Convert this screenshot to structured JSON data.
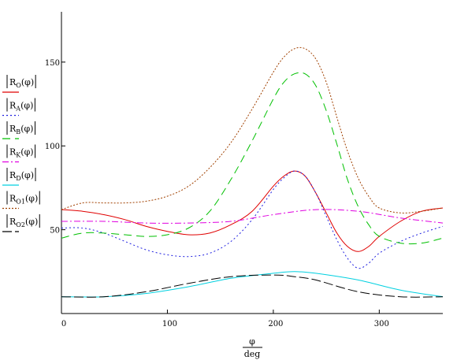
{
  "chart_data": {
    "type": "line",
    "xlabel_num": "φ",
    "xlabel_den": "deg",
    "xlim": [
      0,
      360
    ],
    "ylim": [
      0,
      180
    ],
    "x_ticks": [
      0,
      100,
      200,
      300
    ],
    "y_ticks": [
      50,
      100,
      150
    ],
    "grid": false,
    "legend_placement": "left",
    "series": [
      {
        "name": "|R_O(φ)|",
        "label_main": "R",
        "label_sub": "O",
        "label_arg": "(φ)",
        "color": "#e00000",
        "dash": "",
        "x": [
          0,
          20,
          40,
          60,
          80,
          100,
          120,
          140,
          160,
          180,
          200,
          210,
          220,
          230,
          240,
          250,
          260,
          270,
          280,
          290,
          300,
          320,
          340,
          360
        ],
        "y": [
          62,
          61,
          59,
          56,
          52,
          49,
          47,
          48,
          53,
          61,
          76,
          82,
          85,
          82,
          72,
          60,
          48,
          40,
          37,
          40,
          46,
          55,
          61,
          63
        ]
      },
      {
        "name": "|R_A(φ)|",
        "label_main": "R",
        "label_sub": "A",
        "label_arg": "(φ)",
        "color": "#2020e0",
        "dash": "2,3",
        "x": [
          0,
          20,
          40,
          60,
          80,
          100,
          120,
          140,
          160,
          180,
          200,
          210,
          220,
          230,
          240,
          250,
          260,
          270,
          280,
          290,
          300,
          320,
          340,
          360
        ],
        "y": [
          51,
          51,
          48,
          43,
          38,
          35,
          34,
          36,
          43,
          56,
          74,
          81,
          85,
          82,
          72,
          58,
          44,
          33,
          27,
          30,
          36,
          43,
          48,
          52
        ]
      },
      {
        "name": "|R_B(φ)|",
        "label_main": "R",
        "label_sub": "B",
        "label_arg": "(φ)",
        "color": "#00c000",
        "dash": "10,6",
        "x": [
          0,
          20,
          40,
          60,
          80,
          100,
          120,
          140,
          160,
          180,
          200,
          210,
          220,
          230,
          240,
          250,
          260,
          270,
          280,
          290,
          300,
          320,
          340,
          360
        ],
        "y": [
          45,
          48,
          48,
          47,
          46,
          47,
          51,
          61,
          80,
          103,
          128,
          138,
          143,
          143,
          136,
          121,
          101,
          80,
          64,
          53,
          46,
          42,
          42,
          45
        ]
      },
      {
        "name": "|R_K(φ)|",
        "label_main": "R",
        "label_sub": "K",
        "label_arg": "(φ)",
        "color": "#e000e0",
        "dash": "8,3,2,3",
        "x": [
          0,
          40,
          80,
          120,
          160,
          200,
          240,
          280,
          320,
          360
        ],
        "y": [
          55,
          55,
          54,
          54,
          55,
          59,
          62,
          61,
          57,
          54
        ]
      },
      {
        "name": "|R_D(φ)|",
        "label_main": "R",
        "label_sub": "D",
        "label_arg": "(φ)",
        "color": "#00d0e0",
        "dash": "",
        "x": [
          0,
          40,
          80,
          120,
          160,
          200,
          220,
          240,
          280,
          320,
          360
        ],
        "y": [
          10,
          10,
          12,
          16,
          21,
          24,
          25,
          24,
          20,
          14,
          10
        ]
      },
      {
        "name": "|R_O1(φ)|",
        "label_main": "R",
        "label_sub": "O1",
        "label_arg": "(φ)",
        "color": "#a04000",
        "dash": "2,2",
        "x": [
          0,
          20,
          40,
          60,
          80,
          100,
          120,
          140,
          160,
          180,
          200,
          210,
          220,
          230,
          240,
          250,
          260,
          270,
          280,
          290,
          300,
          320,
          340,
          360
        ],
        "y": [
          62,
          66,
          66,
          66,
          67,
          70,
          76,
          87,
          102,
          122,
          144,
          153,
          158,
          158,
          152,
          138,
          117,
          97,
          81,
          70,
          63,
          60,
          61,
          63
        ]
      },
      {
        "name": "|R_O2(φ)|",
        "label_main": "R",
        "label_sub": "O2",
        "label_arg": "(φ)",
        "color": "#000000",
        "dash": "12,4",
        "x": [
          0,
          40,
          80,
          120,
          160,
          200,
          220,
          240,
          280,
          320,
          360
        ],
        "y": [
          10,
          10,
          13,
          18,
          22,
          23,
          22,
          20,
          13,
          10,
          10
        ]
      }
    ]
  }
}
